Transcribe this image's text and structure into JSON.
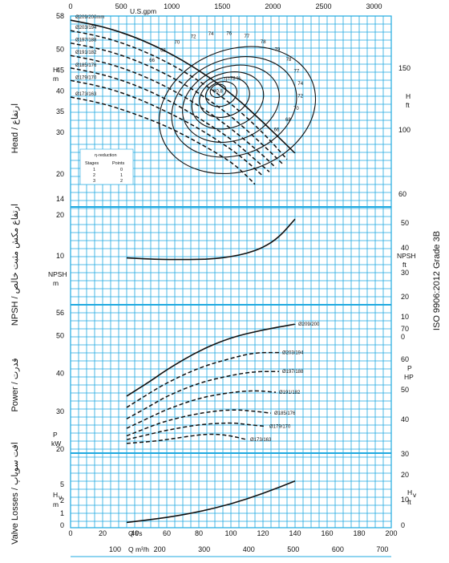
{
  "standard_label": "ISO 9906:2012 Grade 3B",
  "axis_labels": {
    "head_title": "Head / ارتفاع",
    "npsh_title": "NPSH / ارتفاع مکش مثبت خالص",
    "power_title": "Power / قدرت",
    "losses_title": "Valve Losses / افت سوپاپ",
    "head_left": "H\nm",
    "head_right": "H\nft",
    "npsh_left": "NPSH\nm",
    "npsh_right": "NPSH\nft",
    "power_left": "P\nkW",
    "power_right": "P\nHP",
    "losses_left": "Hv\nm",
    "losses_right": "Hv\nft",
    "top_unit": "U.S.gpm",
    "bottom_unit_ls": "Q l/s",
    "bottom_unit_m3h": "Q m³/h"
  },
  "axes": {
    "usgpm_ticks": [
      "0",
      "500",
      "1000",
      "1500",
      "2000",
      "2500",
      "3000"
    ],
    "ls_ticks": [
      "0",
      "20",
      "40",
      "60",
      "80",
      "100",
      "120",
      "140",
      "160",
      "180",
      "200"
    ],
    "m3h_ticks": [
      "100",
      "200",
      "300",
      "400",
      "500",
      "600",
      "700"
    ],
    "head_m_ticks": [
      "58",
      "50",
      "45",
      "40",
      "35",
      "30",
      "20",
      "14"
    ],
    "head_ft_ticks": [
      "150",
      "100",
      "60"
    ],
    "npsh_m_ticks": [
      "20",
      "10"
    ],
    "npsh_ft_ticks": [
      "50",
      "40",
      "30",
      "20",
      "10",
      "0"
    ],
    "power_kw_ticks": [
      "56",
      "50",
      "40",
      "30",
      "20"
    ],
    "power_hp_ticks": [
      "70",
      "60",
      "50",
      "40",
      "30"
    ],
    "hv_m_ticks": [
      "5",
      "2",
      "1",
      "0"
    ],
    "hv_ft_ticks": [
      "20",
      "10",
      "0"
    ]
  },
  "stage_table": {
    "title": "η-reduction",
    "headers": [
      "Stages",
      "Points"
    ],
    "rows": [
      [
        "1",
        "0"
      ],
      [
        "2",
        "1"
      ],
      [
        "3",
        "2"
      ]
    ]
  },
  "chart_data": [
    {
      "type": "line",
      "title": "Head",
      "xlabel": "Q l/s",
      "ylabel": "H m",
      "xlim": [
        0,
        200
      ],
      "ylim": [
        14,
        58
      ],
      "series": [
        {
          "name": "Ø209/200mm",
          "x": [
            0,
            20,
            40,
            60,
            80,
            100,
            120,
            140
          ],
          "y": [
            57,
            55.5,
            53,
            49.5,
            45,
            39.5,
            32.5,
            25
          ]
        },
        {
          "name": "Ø203/194",
          "x": [
            0,
            20,
            40,
            60,
            80,
            100,
            120,
            135
          ],
          "y": [
            54.5,
            53,
            50.5,
            47,
            42.5,
            37,
            30,
            23.5
          ]
        },
        {
          "name": "Ø197/188",
          "x": [
            0,
            20,
            40,
            60,
            80,
            100,
            120,
            132
          ],
          "y": [
            51.5,
            50,
            47.5,
            44,
            39.5,
            34,
            27,
            22.5
          ]
        },
        {
          "name": "Ø191/182",
          "x": [
            0,
            20,
            40,
            60,
            80,
            100,
            120,
            128
          ],
          "y": [
            48.5,
            47,
            44.5,
            41,
            36.5,
            31,
            24.5,
            21.5
          ]
        },
        {
          "name": "Ø185/176",
          "x": [
            0,
            20,
            40,
            60,
            80,
            100,
            115,
            124
          ],
          "y": [
            45.5,
            44,
            41.5,
            38,
            33.5,
            28.5,
            23.5,
            20.5
          ]
        },
        {
          "name": "Ø179/170",
          "x": [
            0,
            20,
            40,
            60,
            80,
            100,
            110,
            120
          ],
          "y": [
            42.5,
            41,
            38.5,
            35,
            31,
            26,
            23,
            19.5
          ]
        },
        {
          "name": "Ø173/163",
          "x": [
            0,
            20,
            40,
            60,
            80,
            100,
            110,
            115
          ],
          "y": [
            38.5,
            37,
            34.5,
            31.5,
            27.5,
            23,
            19.5,
            17.5
          ]
        }
      ],
      "efficiency_labels": [
        "66",
        "68",
        "70",
        "72",
        "74",
        "76",
        "77",
        "78",
        "79",
        "78",
        "77",
        "74",
        "72",
        "70",
        "68",
        "66"
      ],
      "efficiency_main_label": "η=78 %",
      "efficiency_peak": "80.8"
    },
    {
      "type": "line",
      "title": "NPSH",
      "xlabel": "Q l/s",
      "ylabel": "NPSH m",
      "xlim": [
        0,
        200
      ],
      "ylim": [
        0,
        22
      ],
      "series": [
        {
          "name": "NPSH",
          "x": [
            35,
            50,
            60,
            80,
            90,
            100,
            110,
            120,
            130,
            140
          ],
          "y": [
            9.5,
            9.2,
            9.1,
            9.1,
            9.3,
            9.8,
            10.6,
            12,
            14.5,
            19
          ]
        }
      ]
    },
    {
      "type": "line",
      "title": "Power",
      "xlabel": "Q l/s",
      "ylabel": "P kW",
      "xlim": [
        0,
        200
      ],
      "ylim": [
        18,
        56
      ],
      "series": [
        {
          "name": "Ø209/200",
          "x": [
            35,
            50,
            60,
            80,
            100,
            120,
            140
          ],
          "y": [
            34,
            38,
            41,
            46,
            49.5,
            51.5,
            53
          ]
        },
        {
          "name": "Ø203/194",
          "x": [
            35,
            50,
            60,
            80,
            100,
            115,
            130
          ],
          "y": [
            31,
            35,
            37.5,
            41.5,
            44,
            45.5,
            45.5
          ]
        },
        {
          "name": "Ø197/188",
          "x": [
            35,
            50,
            60,
            80,
            100,
            115,
            130
          ],
          "y": [
            28,
            31.5,
            34,
            37.5,
            39.5,
            40.5,
            40.5
          ]
        },
        {
          "name": "Ø191/182",
          "x": [
            35,
            50,
            60,
            80,
            100,
            115,
            128
          ],
          "y": [
            25.5,
            28.5,
            30.5,
            33.5,
            35,
            35.5,
            35
          ]
        },
        {
          "name": "Ø185/176",
          "x": [
            35,
            50,
            60,
            80,
            100,
            115,
            125
          ],
          "y": [
            23.5,
            26,
            27.5,
            29.5,
            30.5,
            30,
            29.5
          ]
        },
        {
          "name": "Ø179/170",
          "x": [
            35,
            50,
            60,
            80,
            100,
            110,
            122
          ],
          "y": [
            22.5,
            24,
            25,
            26.5,
            27,
            26.5,
            26
          ]
        },
        {
          "name": "Ø173/163",
          "x": [
            35,
            50,
            60,
            80,
            90,
            100,
            110
          ],
          "y": [
            21.5,
            22,
            22.5,
            23.8,
            24,
            23.5,
            22.5
          ]
        }
      ]
    },
    {
      "type": "line",
      "title": "Valve Losses",
      "xlabel": "Q l/s",
      "ylabel": "Hv m",
      "xlim": [
        0,
        200
      ],
      "ylim": [
        0,
        6
      ],
      "series": [
        {
          "name": "Hv",
          "x": [
            35,
            60,
            80,
            100,
            120,
            140
          ],
          "y": [
            0.3,
            0.8,
            1.4,
            2.2,
            3.3,
            4.6
          ]
        }
      ]
    }
  ]
}
